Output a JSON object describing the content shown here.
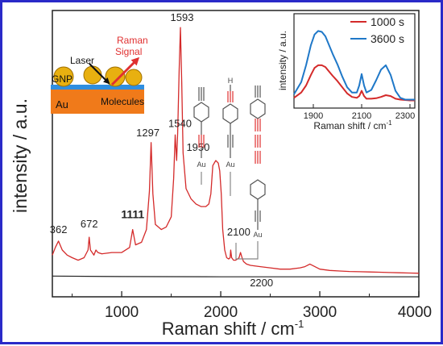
{
  "colors": {
    "red": "#d42a2a",
    "blue": "#1f78c8",
    "black": "#222222",
    "frame": "#2a2ac8",
    "gold": "#e8b010",
    "gold_edge": "#a07000",
    "au": "#f07a1a",
    "layer": "#2f8ee0"
  },
  "main": {
    "ylabel": "intensity / a.u.",
    "xlabel": "Raman shift / cm",
    "xlabel_sup": "-1",
    "xticks": [
      "1000",
      "2000",
      "3000",
      "4000"
    ],
    "peak_labels": [
      "362",
      "672",
      "1111",
      "1297",
      "1540",
      "1593",
      "1950",
      "2100",
      "2200"
    ]
  },
  "schematic": {
    "laser_label": "Laser",
    "raman_label": "Raman",
    "signal_label": "Signal",
    "gnp_label": "GNP",
    "au_label": "Au",
    "molecules_label": "Molecules"
  },
  "molecules": {
    "h_label": "H",
    "au_label_1": "Au",
    "au_label_2": "Au",
    "au_label_3": "Au"
  },
  "inset": {
    "legend": [
      "1000 s",
      "3600 s"
    ],
    "ylabel": "intensity / a.u.",
    "xlabel": "Raman shift / cm",
    "xlabel_sup": "-1",
    "xticks": [
      "1900",
      "2100",
      "2300"
    ]
  },
  "chart_data": [
    {
      "type": "line",
      "xlabel": "Raman shift / cm-1",
      "ylabel": "intensity / a.u.",
      "xlim": [
        300,
        4000
      ],
      "ylim": [
        0,
        100
      ],
      "grid": false,
      "series": [
        {
          "color": "#d42a2a",
          "x": [
            300,
            330,
            362,
            400,
            450,
            500,
            560,
            620,
            660,
            672,
            685,
            720,
            740,
            760,
            800,
            900,
            1000,
            1080,
            1111,
            1140,
            1200,
            1250,
            1280,
            1297,
            1315,
            1340,
            1400,
            1450,
            1500,
            1525,
            1540,
            1555,
            1565,
            1580,
            1593,
            1606,
            1620,
            1650,
            1700,
            1750,
            1800,
            1850,
            1880,
            1900,
            1920,
            1950,
            1975,
            1990,
            2005,
            2020,
            2040,
            2060,
            2080,
            2095,
            2100,
            2110,
            2130,
            2150,
            2170,
            2185,
            2200,
            2215,
            2230,
            2260,
            2300,
            2400,
            2500,
            2600,
            2700,
            2800,
            2850,
            2900,
            2950,
            3000,
            3100,
            3200,
            3300,
            3400,
            3500,
            3600,
            3700,
            3800,
            3900,
            4000
          ],
          "y": [
            10,
            13,
            15.5,
            12,
            10,
            9,
            8,
            9,
            12,
            17,
            12,
            10,
            12,
            11,
            10.5,
            11,
            11,
            13,
            20,
            14,
            15,
            20,
            35,
            54,
            34,
            22,
            20,
            21,
            25,
            40,
            57,
            47,
            58,
            82,
            99,
            78,
            50,
            36,
            32,
            30,
            29,
            29,
            30,
            34,
            45,
            47,
            46,
            43,
            34,
            20,
            12,
            9,
            8.5,
            9,
            12,
            9,
            8,
            8,
            8.5,
            9,
            11,
            9,
            7.5,
            6.5,
            6,
            5.5,
            5,
            4.5,
            4.5,
            5,
            5.5,
            6.5,
            5.5,
            4.5,
            4,
            3.8,
            3.6,
            3.5,
            3.4,
            3.3,
            3.2,
            3.1,
            3.0,
            2.9
          ]
        },
        {
          "color": "#222222",
          "x": [
            300,
            1000,
            2000,
            3000,
            4000
          ],
          "y": [
            1.8,
            1.6,
            1.5,
            1.5,
            1.5
          ]
        }
      ],
      "annotations": [
        "362",
        "672",
        "1111",
        "1297",
        "1540",
        "1593",
        "1950",
        "2100",
        "2200"
      ]
    },
    {
      "type": "line",
      "xlabel": "Raman shift / cm-1",
      "ylabel": "intensity / a.u.",
      "xlim": [
        1820,
        2320
      ],
      "ylim": [
        0,
        100
      ],
      "legend": "top-right",
      "series": [
        {
          "name": "1000 s",
          "color": "#d42a2a",
          "x": [
            1820,
            1850,
            1870,
            1890,
            1905,
            1920,
            1935,
            1950,
            1965,
            1980,
            2000,
            2020,
            2040,
            2060,
            2080,
            2090,
            2100,
            2110,
            2120,
            2140,
            2160,
            2180,
            2200,
            2220,
            2240,
            2260,
            2280,
            2300,
            2320
          ],
          "y": [
            8,
            14,
            22,
            34,
            42,
            45,
            45,
            43,
            38,
            33,
            27,
            20,
            13,
            9,
            8,
            10,
            16,
            10,
            7,
            7,
            7.5,
            9,
            11,
            10,
            7,
            6,
            5.5,
            5,
            5
          ]
        },
        {
          "name": "3600 s",
          "color": "#1f78c8",
          "x": [
            1820,
            1850,
            1870,
            1890,
            1905,
            1920,
            1935,
            1950,
            1965,
            1980,
            2000,
            2020,
            2040,
            2060,
            2080,
            2090,
            2100,
            2110,
            2120,
            2140,
            2160,
            2180,
            2200,
            2220,
            2240,
            2260,
            2280,
            2300,
            2320
          ],
          "y": [
            12,
            26,
            45,
            68,
            80,
            84,
            83,
            78,
            68,
            58,
            46,
            32,
            20,
            14,
            14,
            22,
            35,
            22,
            14,
            17,
            28,
            40,
            45,
            34,
            16,
            8,
            6,
            6,
            6
          ]
        }
      ]
    }
  ]
}
